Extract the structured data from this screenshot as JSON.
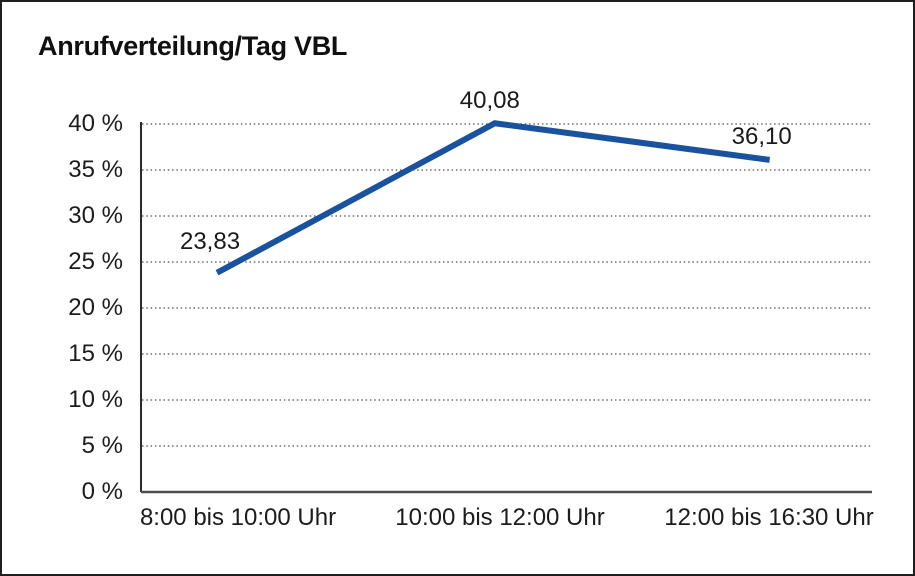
{
  "chart_data": {
    "type": "line",
    "title": "Anrufverteilung/Tag VBL",
    "categories": [
      "8:00 bis 10:00 Uhr",
      "10:00 bis 12:00 Uhr",
      "12:00 bis 16:30 Uhr"
    ],
    "values": [
      23.83,
      40.08,
      36.1
    ],
    "value_labels": [
      "23,83",
      "40,08",
      "36,10"
    ],
    "xlabel": "",
    "ylabel": "",
    "ylim": [
      0,
      40
    ],
    "y_ticks": [
      {
        "value": 0,
        "label": "0 %"
      },
      {
        "value": 5,
        "label": "5 %"
      },
      {
        "value": 10,
        "label": "10 %"
      },
      {
        "value": 15,
        "label": "15 %"
      },
      {
        "value": 20,
        "label": "20 %"
      },
      {
        "value": 25,
        "label": "25 %"
      },
      {
        "value": 30,
        "label": "30 %"
      },
      {
        "value": 35,
        "label": "35 %"
      },
      {
        "value": 40,
        "label": "40 %"
      }
    ],
    "grid": "horizontal-dotted",
    "legend": "none",
    "colors": {
      "line": "#1a529d",
      "y_axis": "#2b2b2b",
      "x_axis": "#4d4d4d",
      "gridline": "#4f4f4f",
      "text": "#1c1c1c",
      "frame_border": "#1f1f1f",
      "background": "#ffffff"
    }
  }
}
